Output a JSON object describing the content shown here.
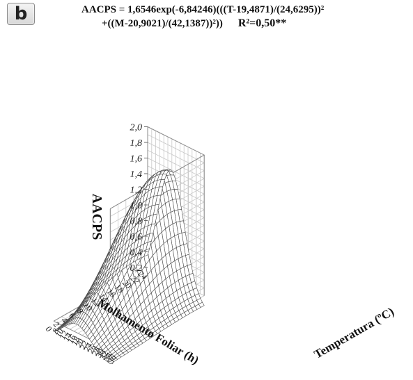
{
  "panel_label": "b",
  "equation": {
    "line1": "AACPS = 1,6546exp(-6,84246)(((T-19,4871)/(24,6295))²",
    "line2": "+((M-20,9021)/(42,1387))²))",
    "r2": "R²=0,50**"
  },
  "chart_data": {
    "type": "surface",
    "function": "AACPS = 1.6546*exp(-6.84246*(((T-19.4871)/24.6295)^2 + ((M-20.9021)/42.1387)^2))",
    "params": {
      "a": 1.6546,
      "b": -6.84246,
      "T0": 19.4871,
      "sT": 24.6295,
      "M0": 20.9021,
      "sM": 42.1387
    },
    "zlabel": "AACPS",
    "ylabel": "Molhamento Foliar (h)",
    "xlabel": "Temperatura (ºC)",
    "zlim": [
      0.2,
      2.0
    ],
    "z_ticks": [
      "2,0",
      "1,8",
      "1,6",
      "1,4",
      "1,2",
      "1,0",
      "0,8",
      "0,6",
      "0,4",
      "0,2"
    ],
    "temperature_ticks": [
      "8",
      "10",
      "12",
      "14",
      "16",
      "18",
      "20",
      "22",
      "24",
      "26",
      "28",
      "30",
      "32",
      "34",
      "36"
    ],
    "temperature_range": [
      8,
      36
    ],
    "wetness_ticks": [
      "24",
      "22",
      "20",
      "18",
      "16",
      "14",
      "12",
      "10",
      "8",
      "6",
      "4",
      "2",
      "0"
    ],
    "wetness_range": [
      0,
      24
    ],
    "grid": true
  }
}
